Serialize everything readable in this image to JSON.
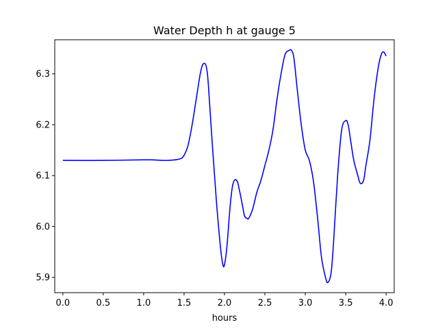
{
  "chart_data": {
    "type": "line",
    "title": "Water Depth h at gauge 5",
    "xlabel": "hours",
    "ylabel": "",
    "xlim": [
      -0.1,
      4.1
    ],
    "ylim": [
      5.87,
      6.367
    ],
    "xticks": [
      0.0,
      0.5,
      1.0,
      1.5,
      2.0,
      2.5,
      3.0,
      3.5,
      4.0
    ],
    "xtick_labels": [
      "0.0",
      "0.5",
      "1.0",
      "1.5",
      "2.0",
      "2.5",
      "3.0",
      "3.5",
      "4.0"
    ],
    "yticks": [
      5.9,
      6.0,
      6.1,
      6.2,
      6.3
    ],
    "ytick_labels": [
      "5.9",
      "6.0",
      "6.1",
      "6.2",
      "6.3"
    ],
    "grid": false,
    "series": [
      {
        "color": "#0000ff",
        "x": [
          0.0,
          0.5,
          1.0,
          1.1,
          1.3,
          1.45,
          1.5,
          1.55,
          1.6,
          1.65,
          1.7,
          1.73,
          1.76,
          1.78,
          1.8,
          1.85,
          1.9,
          1.95,
          1.98,
          2.0,
          2.03,
          2.07,
          2.1,
          2.13,
          2.16,
          2.18,
          2.2,
          2.23,
          2.25,
          2.28,
          2.3,
          2.35,
          2.4,
          2.45,
          2.5,
          2.55,
          2.6,
          2.65,
          2.7,
          2.75,
          2.8,
          2.83,
          2.86,
          2.9,
          2.95,
          3.0,
          3.05,
          3.1,
          3.15,
          3.2,
          3.25,
          3.28,
          3.32,
          3.35,
          3.4,
          3.45,
          3.5,
          3.53,
          3.56,
          3.6,
          3.65,
          3.68,
          3.72,
          3.75,
          3.8,
          3.85,
          3.9,
          3.94,
          3.97,
          4.0
        ],
        "y": [
          6.13,
          6.13,
          6.131,
          6.131,
          6.13,
          6.133,
          6.14,
          6.16,
          6.2,
          6.25,
          6.3,
          6.318,
          6.32,
          6.31,
          6.28,
          6.16,
          6.05,
          5.96,
          5.925,
          5.925,
          5.96,
          6.04,
          6.08,
          6.092,
          6.088,
          6.075,
          6.06,
          6.035,
          6.02,
          6.016,
          6.016,
          6.035,
          6.067,
          6.09,
          6.12,
          6.15,
          6.19,
          6.25,
          6.3,
          6.338,
          6.346,
          6.346,
          6.33,
          6.27,
          6.2,
          6.15,
          6.13,
          6.09,
          6.02,
          5.94,
          5.9,
          5.89,
          5.91,
          5.97,
          6.1,
          6.19,
          6.208,
          6.2,
          6.17,
          6.13,
          6.1,
          6.085,
          6.09,
          6.12,
          6.17,
          6.25,
          6.31,
          6.338,
          6.343,
          6.335
        ]
      }
    ]
  }
}
